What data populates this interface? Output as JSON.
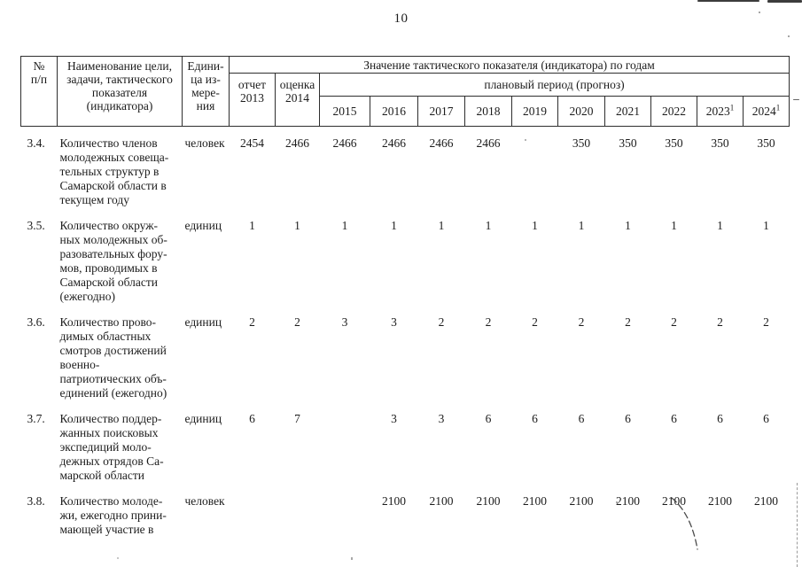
{
  "page": {
    "number": "10"
  },
  "table": {
    "header": {
      "col_num": "№\nп/п",
      "col_name": "Наименование цели,\nзадачи, тактического\nпоказателя\n(индикатора)",
      "col_unit": "Едини-\nца из-\nмере-\nния",
      "values_span": "Значение тактического показателя (индикатора) по годам",
      "col_2013": "отчет\n2013",
      "col_2014": "оценка\n2014",
      "plan_span": "плановый период (прогноз)",
      "years": [
        {
          "y": "2015",
          "sup": ""
        },
        {
          "y": "2016",
          "sup": ""
        },
        {
          "y": "2017",
          "sup": ""
        },
        {
          "y": "2018",
          "sup": ""
        },
        {
          "y": "2019",
          "sup": ""
        },
        {
          "y": "2020",
          "sup": ""
        },
        {
          "y": "2021",
          "sup": ""
        },
        {
          "y": "2022",
          "sup": ""
        },
        {
          "y": "2023",
          "sup": "1"
        },
        {
          "y": "2024",
          "sup": "1"
        }
      ]
    },
    "rows": [
      {
        "id": "3.4.",
        "name": "Количество членов\nмолодежных совеща-\nтельных структур в\nСамарской области в\nтекущем году",
        "unit": "человек",
        "values": [
          "2454",
          "2466",
          "2466",
          "2466",
          "2466",
          "2466",
          "",
          "350",
          "350",
          "350",
          "350",
          "350"
        ]
      },
      {
        "id": "3.5.",
        "name": "Количество окруж-\nных молодежных об-\nразовательных фору-\nмов, проводимых в\nСамарской области\n(ежегодно)",
        "unit": "единиц",
        "values": [
          "1",
          "1",
          "1",
          "1",
          "1",
          "1",
          "1",
          "1",
          "1",
          "1",
          "1",
          "1"
        ]
      },
      {
        "id": "3.6.",
        "name": "Количество прово-\nдимых областных\nсмотров достижений\nвоенно-\nпатриотических объ-\nединений (ежегодно)",
        "unit": "единиц",
        "values": [
          "2",
          "2",
          "3",
          "3",
          "2",
          "2",
          "2",
          "2",
          "2",
          "2",
          "2",
          "2"
        ]
      },
      {
        "id": "3.7.",
        "name": "Количество поддер-\nжанных поисковых\nэкспедиций моло-\nдежных отрядов Са-\nмарской области",
        "unit": "единиц",
        "values": [
          "6",
          "7",
          "",
          "3",
          "3",
          "6",
          "6",
          "6",
          "6",
          "6",
          "6",
          "6"
        ]
      },
      {
        "id": "3.8.",
        "name": "Количество молоде-\nжи, ежегодно прини-\nмающей участие в",
        "unit": "человек",
        "values": [
          "",
          "",
          "",
          "2100",
          "2100",
          "2100",
          "2100",
          "2100",
          "2100",
          "2100",
          "2100",
          "2100"
        ]
      }
    ]
  },
  "colors": {
    "ink": "#1c1c1c",
    "border": "#2e2e2e",
    "paper": "#ffffff"
  }
}
